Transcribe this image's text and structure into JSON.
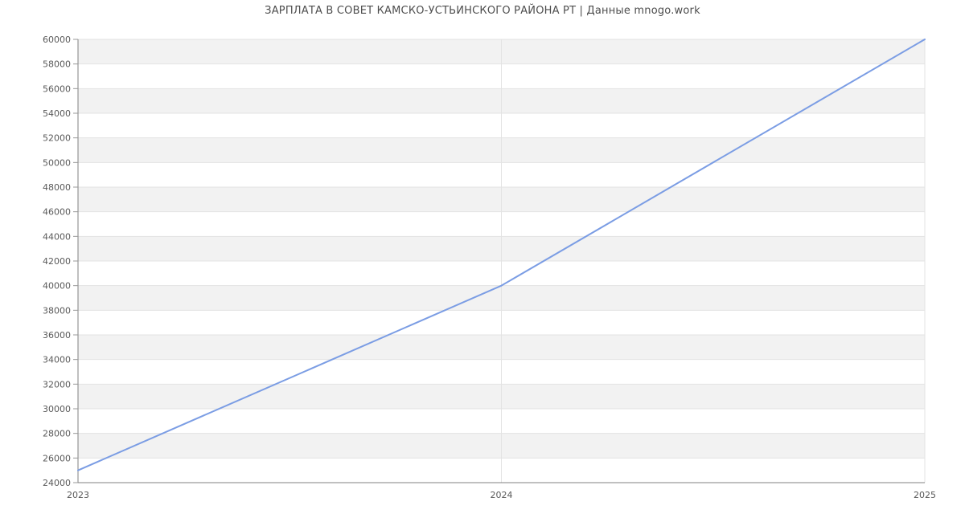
{
  "title": "ЗАРПЛАТА В СОВЕТ КАМСКО-УСТЬИНСКОГО РАЙОНА РТ | Данные mnogo.work",
  "chart_data": {
    "type": "line",
    "title": "ЗАРПЛАТА В СОВЕТ КАМСКО-УСТЬИНСКОГО РАЙОНА РТ | Данные mnogo.work",
    "x": [
      2023,
      2024,
      2025
    ],
    "series": [
      {
        "name": "salary",
        "values": [
          25000,
          40000,
          60000
        ]
      }
    ],
    "xlabel": "",
    "ylabel": "",
    "xlim": [
      2023,
      2025
    ],
    "ylim": [
      24000,
      60000
    ],
    "xtick_labels": [
      "2023",
      "2024",
      "2025"
    ],
    "ytick_step": 2000,
    "ytick_labels": [
      "24000",
      "26000",
      "28000",
      "30000",
      "32000",
      "34000",
      "36000",
      "38000",
      "40000",
      "42000",
      "44000",
      "46000",
      "48000",
      "50000",
      "52000",
      "54000",
      "56000",
      "58000",
      "60000"
    ],
    "grid": true,
    "legend": "none",
    "colors": {
      "line": "#7b9de4",
      "band_alt": "#f2f2f2",
      "band_main": "#ffffff",
      "gridline": "#e3e3e3",
      "axis": "#808080",
      "tick": "#999999",
      "tick_label": "#595959",
      "title": "#4d4d4d",
      "background": "#ffffff"
    }
  }
}
